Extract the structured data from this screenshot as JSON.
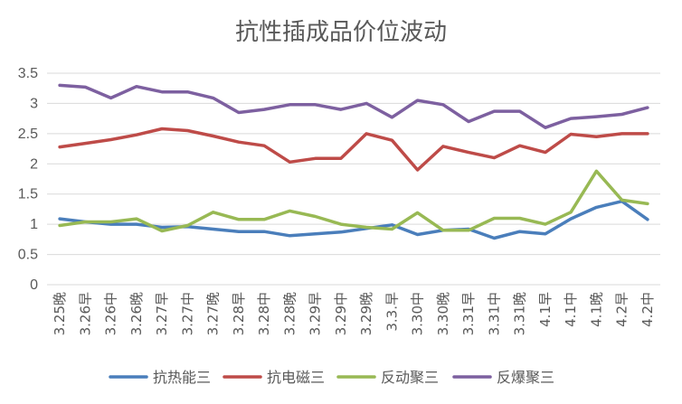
{
  "chart_data": {
    "type": "line",
    "title": "抗性插成品价位波动",
    "xlabel": "",
    "ylabel": "",
    "ylim": [
      0,
      3.5
    ],
    "yticks": [
      "0",
      "0.5",
      "1",
      "1.5",
      "2",
      "2.5",
      "3",
      "3.5"
    ],
    "grid": true,
    "legend_position": "bottom",
    "categories": [
      "3.25晚",
      "3.26早",
      "3.26中",
      "3.26晚",
      "3.27早",
      "3.27中",
      "3.27晚",
      "3.28早",
      "3.28中",
      "3.28晚",
      "3.29早",
      "3.29中",
      "3.29晚",
      "3.3.早",
      "3.30中",
      "3.30晚",
      "3.31早",
      "3.31中",
      "3.31晚",
      "4.1早",
      "4.1中",
      "4.1晚",
      "4.2早",
      "4.2中"
    ],
    "series": [
      {
        "name": "抗热能三",
        "color": "#4a7ebb",
        "values": [
          1.09,
          1.04,
          1.0,
          1.0,
          0.95,
          0.96,
          0.92,
          0.88,
          0.88,
          0.81,
          0.84,
          0.87,
          0.93,
          0.99,
          0.83,
          0.9,
          0.92,
          0.77,
          0.88,
          0.84,
          1.09,
          1.28,
          1.38,
          1.08
        ]
      },
      {
        "name": "抗电磁三",
        "color": "#be4b48",
        "values": [
          2.28,
          2.34,
          2.4,
          2.48,
          2.58,
          2.55,
          2.46,
          2.36,
          2.3,
          2.03,
          2.09,
          2.09,
          2.5,
          2.39,
          1.9,
          2.29,
          2.19,
          2.1,
          2.3,
          2.19,
          2.49,
          2.45,
          2.5,
          2.5
        ]
      },
      {
        "name": "反动聚三",
        "color": "#98b954",
        "values": [
          0.98,
          1.04,
          1.04,
          1.09,
          0.89,
          0.98,
          1.2,
          1.08,
          1.08,
          1.22,
          1.13,
          1.0,
          0.95,
          0.92,
          1.19,
          0.9,
          0.9,
          1.1,
          1.1,
          1.0,
          1.2,
          1.88,
          1.4,
          1.34
        ]
      },
      {
        "name": "反爆聚三",
        "color": "#7d60a0",
        "values": [
          3.3,
          3.27,
          3.09,
          3.28,
          3.19,
          3.19,
          3.09,
          2.85,
          2.9,
          2.98,
          2.98,
          2.9,
          3.0,
          2.77,
          3.05,
          2.98,
          2.7,
          2.87,
          2.87,
          2.6,
          2.75,
          2.78,
          2.82,
          2.93
        ]
      }
    ]
  }
}
